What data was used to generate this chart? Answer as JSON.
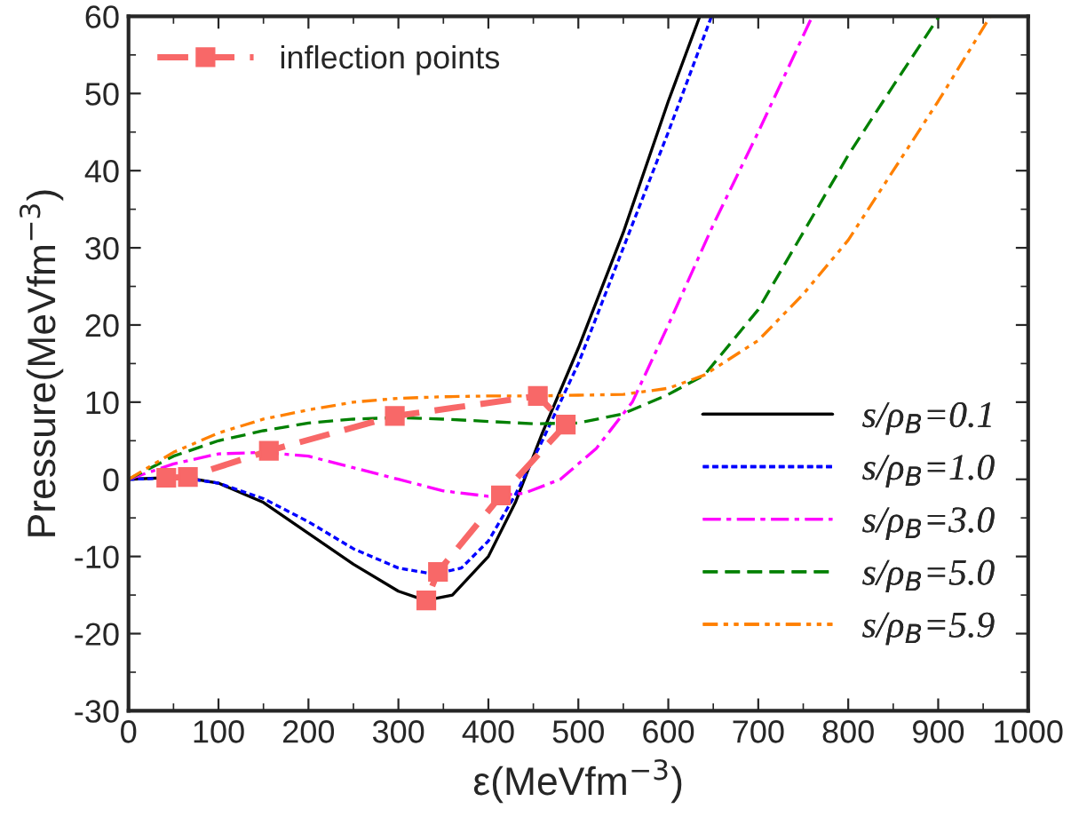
{
  "chart_data": {
    "type": "line",
    "xlabel": "ε(MeVfm$^{−3}$)",
    "ylabel": "Pressure(MeVfm$^{−3}$)",
    "xlim": [
      0,
      1000
    ],
    "xticks": [
      0,
      100,
      200,
      300,
      400,
      500,
      600,
      700,
      800,
      900,
      1000
    ],
    "ylim": [
      -30,
      60
    ],
    "yticks": [
      -30,
      -20,
      -10,
      0,
      10,
      20,
      30,
      40,
      50,
      60
    ],
    "grid": false,
    "legend": "right",
    "series": [
      {
        "name": "inflection points",
        "color": "#f86868",
        "line_style": "dashed",
        "marker": "square",
        "x": [
          42,
          66,
          156,
          296,
          455,
          486,
          414,
          344,
          331
        ],
        "values": [
          0.2,
          0.3,
          3.7,
          8.2,
          10.8,
          7.1,
          -2.1,
          -12,
          -15.7
        ]
      },
      {
        "name": "s/ρ$_{B}$=0.1",
        "color": "#000000",
        "line_style": "solid",
        "x": [
          0,
          60,
          100,
          150,
          200,
          250,
          300,
          330,
          360,
          400,
          430,
          460,
          500,
          550,
          600,
          635
        ],
        "values": [
          0,
          0.3,
          -0.5,
          -3,
          -7,
          -11,
          -14.5,
          -15.7,
          -15,
          -10,
          -3,
          6,
          17,
          32,
          49,
          60
        ]
      },
      {
        "name": "s/ρ$_{B}$=1.0",
        "color": "#0000ff",
        "line_style": "dotted",
        "x": [
          0,
          60,
          100,
          150,
          200,
          250,
          300,
          340,
          370,
          400,
          430,
          460,
          500,
          550,
          600,
          648
        ],
        "values": [
          0,
          0.2,
          -0.5,
          -2.5,
          -5.5,
          -9,
          -11.5,
          -12.3,
          -11.5,
          -8,
          -2,
          5,
          15,
          30,
          45,
          60
        ]
      },
      {
        "name": "s/ρ$_{B}$=3.0",
        "color": "#ff00ff",
        "line_style": "dashdot",
        "x": [
          0,
          50,
          100,
          150,
          200,
          250,
          300,
          350,
          400,
          440,
          480,
          520,
          560,
          600,
          650,
          700,
          760
        ],
        "values": [
          0,
          2,
          3.3,
          3.5,
          3,
          1.5,
          0,
          -1.5,
          -2.2,
          -1.8,
          0,
          4,
          10,
          20,
          33,
          45,
          60
        ]
      },
      {
        "name": "s/ρ$_{B}$=5.0",
        "color": "#008000",
        "line_style": "dashed",
        "x": [
          0,
          50,
          100,
          150,
          200,
          250,
          300,
          350,
          400,
          450,
          500,
          550,
          600,
          640,
          700,
          750,
          800,
          850,
          901
        ],
        "values": [
          0,
          3,
          5,
          6.3,
          7.3,
          7.8,
          8,
          7.8,
          7.5,
          7.2,
          7.3,
          8.5,
          11,
          13.5,
          22,
          32,
          42,
          51,
          60
        ]
      },
      {
        "name": "s/ρ$_{B}$=5.9",
        "color": "#ff8000",
        "line_style": "dashdotdot",
        "x": [
          0,
          50,
          100,
          150,
          200,
          250,
          300,
          350,
          400,
          450,
          500,
          550,
          600,
          640,
          700,
          750,
          800,
          850,
          900,
          958
        ],
        "values": [
          0,
          3.5,
          6,
          7.8,
          9,
          10,
          10.5,
          10.7,
          10.8,
          10.8,
          10.9,
          11,
          11.8,
          13.5,
          18,
          24,
          31,
          40,
          49,
          60
        ]
      }
    ]
  }
}
